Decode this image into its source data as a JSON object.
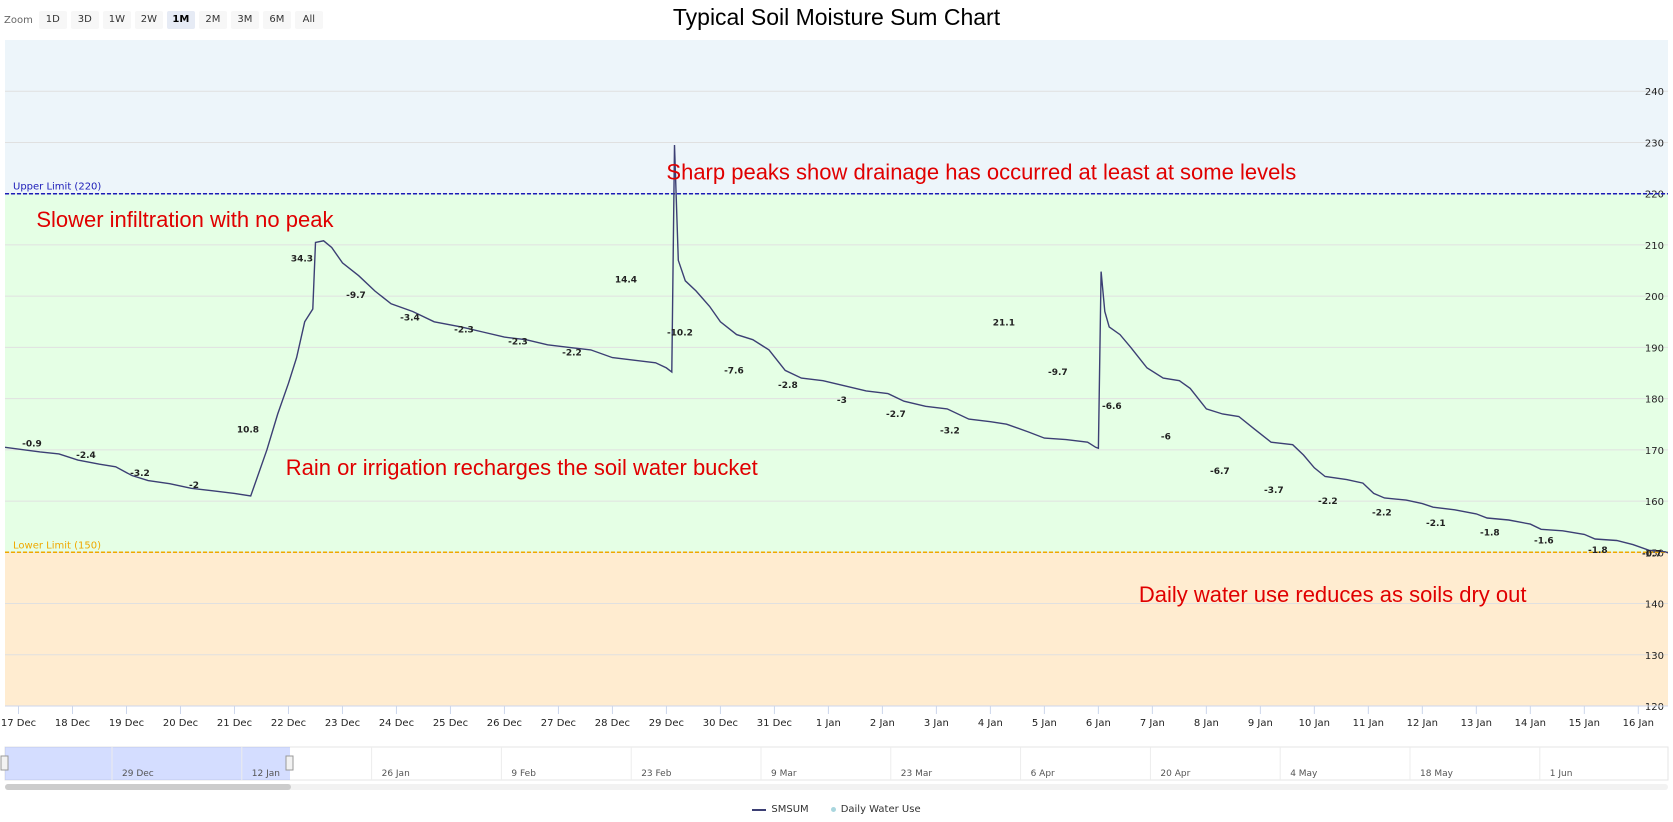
{
  "zoom": {
    "label": "Zoom",
    "buttons": [
      "1D",
      "3D",
      "1W",
      "2W",
      "1M",
      "2M",
      "3M",
      "6M",
      "All"
    ],
    "active": "1M"
  },
  "chart_data": {
    "type": "line",
    "title": "Typical Soil Moisture Sum Chart",
    "xlabel": "",
    "ylabel": "",
    "x_ticks": [
      "17 Dec",
      "18 Dec",
      "19 Dec",
      "20 Dec",
      "21 Dec",
      "22 Dec",
      "23 Dec",
      "24 Dec",
      "25 Dec",
      "26 Dec",
      "27 Dec",
      "28 Dec",
      "29 Dec",
      "30 Dec",
      "31 Dec",
      "1 Jan",
      "2 Jan",
      "3 Jan",
      "4 Jan",
      "5 Jan",
      "6 Jan",
      "7 Jan",
      "8 Jan",
      "9 Jan",
      "10 Jan",
      "11 Jan",
      "12 Jan",
      "13 Jan",
      "14 Jan",
      "15 Jan",
      "16 Jan"
    ],
    "y_ticks": [
      120,
      130,
      140,
      150,
      160,
      170,
      180,
      190,
      200,
      210,
      220,
      230,
      240
    ],
    "ylim": [
      120,
      250
    ],
    "xlim_days": [
      -0.25,
      30.55
    ],
    "grid": true,
    "legend_position": "bottom-center",
    "bands": [
      {
        "from": 220,
        "to": 250,
        "color": "#edf5fa"
      },
      {
        "from": 150,
        "to": 220,
        "color": "#e5ffe5"
      },
      {
        "from": 120,
        "to": 150,
        "color": "#ffecd0"
      }
    ],
    "plot_lines": [
      {
        "value": 220,
        "label": "Upper Limit (220)",
        "color": "#1c1cb8"
      },
      {
        "value": 150,
        "label": "Lower Limit (150)",
        "color": "#f0a800"
      }
    ],
    "series": [
      {
        "name": "SMSUM",
        "color": "#3c3f74",
        "points": [
          [
            -0.25,
            170.5
          ],
          [
            0.1,
            170
          ],
          [
            0.4,
            169.6
          ],
          [
            0.75,
            169.2
          ],
          [
            1.1,
            168
          ],
          [
            1.5,
            167.2
          ],
          [
            1.8,
            166.7
          ],
          [
            2.1,
            165
          ],
          [
            2.4,
            164
          ],
          [
            2.8,
            163.4
          ],
          [
            3.2,
            162.5
          ],
          [
            3.6,
            162
          ],
          [
            4.0,
            161.5
          ],
          [
            4.3,
            161
          ],
          [
            4.6,
            170
          ],
          [
            4.8,
            177
          ],
          [
            5.0,
            183
          ],
          [
            5.15,
            188
          ],
          [
            5.3,
            195
          ],
          [
            5.45,
            197.5
          ],
          [
            5.5,
            210.5
          ],
          [
            5.65,
            210.8
          ],
          [
            5.8,
            209.5
          ],
          [
            6.0,
            206.5
          ],
          [
            6.3,
            204
          ],
          [
            6.6,
            201
          ],
          [
            6.9,
            198.5
          ],
          [
            7.3,
            197
          ],
          [
            7.7,
            195
          ],
          [
            8.2,
            194
          ],
          [
            8.6,
            193
          ],
          [
            9.0,
            192
          ],
          [
            9.4,
            191.5
          ],
          [
            9.8,
            190.5
          ],
          [
            10.2,
            190
          ],
          [
            10.6,
            189.5
          ],
          [
            11.0,
            188
          ],
          [
            11.4,
            187.5
          ],
          [
            11.8,
            187
          ],
          [
            12.0,
            186
          ],
          [
            12.1,
            185.2
          ],
          [
            12.15,
            229.5
          ],
          [
            12.22,
            207
          ],
          [
            12.35,
            203
          ],
          [
            12.55,
            201
          ],
          [
            12.8,
            198
          ],
          [
            13.0,
            195
          ],
          [
            13.3,
            192.5
          ],
          [
            13.6,
            191.5
          ],
          [
            13.9,
            189.5
          ],
          [
            14.2,
            185.5
          ],
          [
            14.5,
            184
          ],
          [
            14.9,
            183.5
          ],
          [
            15.3,
            182.5
          ],
          [
            15.7,
            181.5
          ],
          [
            16.1,
            181
          ],
          [
            16.4,
            179.5
          ],
          [
            16.8,
            178.5
          ],
          [
            17.2,
            178
          ],
          [
            17.6,
            176
          ],
          [
            18.0,
            175.5
          ],
          [
            18.3,
            175
          ],
          [
            18.7,
            173.5
          ],
          [
            19.0,
            172.3
          ],
          [
            19.4,
            172
          ],
          [
            19.8,
            171.5
          ],
          [
            19.95,
            170.5
          ],
          [
            20.0,
            170.3
          ],
          [
            20.05,
            204.8
          ],
          [
            20.12,
            197
          ],
          [
            20.2,
            194
          ],
          [
            20.4,
            192.5
          ],
          [
            20.6,
            190
          ],
          [
            20.9,
            186
          ],
          [
            21.2,
            184
          ],
          [
            21.5,
            183.5
          ],
          [
            21.7,
            182
          ],
          [
            22.0,
            178
          ],
          [
            22.3,
            177
          ],
          [
            22.6,
            176.5
          ],
          [
            22.9,
            174
          ],
          [
            23.2,
            171.5
          ],
          [
            23.6,
            171
          ],
          [
            23.8,
            169
          ],
          [
            24.0,
            166.5
          ],
          [
            24.2,
            164.8
          ],
          [
            24.6,
            164.2
          ],
          [
            24.9,
            163.5
          ],
          [
            25.1,
            161.5
          ],
          [
            25.3,
            160.6
          ],
          [
            25.7,
            160.2
          ],
          [
            26.0,
            159.5
          ],
          [
            26.2,
            158.8
          ],
          [
            26.6,
            158.3
          ],
          [
            27.0,
            157.5
          ],
          [
            27.2,
            156.7
          ],
          [
            27.6,
            156.3
          ],
          [
            28.0,
            155.5
          ],
          [
            28.2,
            154.5
          ],
          [
            28.6,
            154.2
          ],
          [
            29.0,
            153.5
          ],
          [
            29.2,
            152.6
          ],
          [
            29.6,
            152.3
          ],
          [
            29.9,
            151.5
          ],
          [
            30.2,
            150.4
          ],
          [
            30.5,
            150.1
          ],
          [
            30.75,
            149.2
          ],
          [
            31.0,
            148.9
          ],
          [
            31.4,
            148.8
          ],
          [
            31.8,
            148.2
          ],
          [
            32.2,
            148
          ],
          [
            32.6,
            147.6
          ]
        ]
      },
      {
        "name": "Daily Water Use",
        "color": "#a9d6de",
        "labels": [
          {
            "x": 0.25,
            "y": 170.7,
            "text": "-0.9"
          },
          {
            "x": 1.25,
            "y": 168.4,
            "text": "-2.4"
          },
          {
            "x": 2.25,
            "y": 164.9,
            "text": "-3.2"
          },
          {
            "x": 3.25,
            "y": 162.6,
            "text": "-2"
          },
          {
            "x": 4.25,
            "y": 173.4,
            "text": "10.8"
          },
          {
            "x": 5.25,
            "y": 206.8,
            "text": "34.3"
          },
          {
            "x": 6.25,
            "y": 199.6,
            "text": "-9.7"
          },
          {
            "x": 7.25,
            "y": 195.2,
            "text": "-3.4"
          },
          {
            "x": 8.25,
            "y": 192.9,
            "text": "-2.3"
          },
          {
            "x": 9.25,
            "y": 190.6,
            "text": "-2.3"
          },
          {
            "x": 10.25,
            "y": 188.4,
            "text": "-2.2"
          },
          {
            "x": 11.25,
            "y": 202.7,
            "text": "14.4"
          },
          {
            "x": 12.25,
            "y": 192.3,
            "text": "-10.2"
          },
          {
            "x": 13.25,
            "y": 184.9,
            "text": "-7.6"
          },
          {
            "x": 14.25,
            "y": 182.1,
            "text": "-2.8"
          },
          {
            "x": 15.25,
            "y": 179.1,
            "text": "-3"
          },
          {
            "x": 16.25,
            "y": 176.4,
            "text": "-2.7"
          },
          {
            "x": 17.25,
            "y": 173.2,
            "text": "-3.2"
          },
          {
            "x": 18.25,
            "y": 194.3,
            "text": "21.1"
          },
          {
            "x": 19.25,
            "y": 184.6,
            "text": "-9.7"
          },
          {
            "x": 20.25,
            "y": 178,
            "text": "-6.6"
          },
          {
            "x": 21.25,
            "y": 172,
            "text": "-6"
          },
          {
            "x": 22.25,
            "y": 165.3,
            "text": "-6.7"
          },
          {
            "x": 23.25,
            "y": 161.6,
            "text": "-3.7"
          },
          {
            "x": 24.25,
            "y": 159.4,
            "text": "-2.2"
          },
          {
            "x": 25.25,
            "y": 157.2,
            "text": "-2.2"
          },
          {
            "x": 26.25,
            "y": 155.1,
            "text": "-2.1"
          },
          {
            "x": 27.25,
            "y": 153.3,
            "text": "-1.8"
          },
          {
            "x": 28.25,
            "y": 151.7,
            "text": "-1.6"
          },
          {
            "x": 29.25,
            "y": 149.9,
            "text": "-1.8"
          },
          {
            "x": 30.25,
            "y": 149.2,
            "text": "-0.7"
          }
        ]
      }
    ],
    "annotations": [
      {
        "text": "Sharp peaks show drainage has occurred at least at some levels",
        "x": 12.0,
        "y": 222.8
      },
      {
        "text": "Slower infiltration with no peak",
        "x": 0.33,
        "y": 213.5
      },
      {
        "text": "Rain or irrigation recharges the soil water bucket",
        "x": 4.95,
        "y": 165.1
      },
      {
        "text": "Daily water use reduces as soils dry out",
        "x": 20.75,
        "y": 140.3
      }
    ]
  },
  "navigator": {
    "labels": [
      "29 Dec",
      "12 Jan",
      "26 Jan",
      "9 Feb",
      "23 Feb",
      "9 Mar",
      "23 Mar",
      "6 Apr",
      "20 Apr",
      "4 May",
      "18 May",
      "1 Jun"
    ]
  },
  "legend": {
    "items": [
      "SMSUM",
      "Daily Water Use"
    ]
  }
}
